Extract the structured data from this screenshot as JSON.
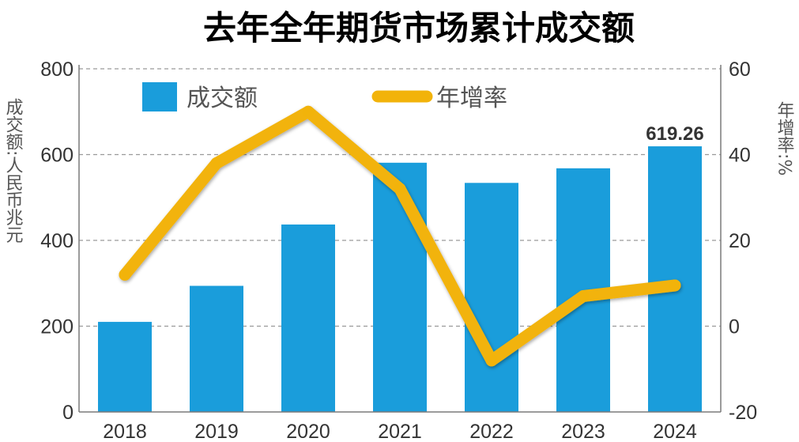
{
  "chart_data": {
    "type": "bar",
    "title": "去年全年期货市场累计成交额",
    "categories": [
      "2018",
      "2019",
      "2020",
      "2021",
      "2022",
      "2023",
      "2024"
    ],
    "series": [
      {
        "name": "成交额",
        "type": "bar",
        "axis": "left",
        "values": [
          210,
          294,
          437,
          581,
          534,
          568,
          619.26
        ]
      },
      {
        "name": "年增率",
        "type": "line",
        "axis": "right",
        "values": [
          12.0,
          38.0,
          50.0,
          32.0,
          -8.0,
          7.0,
          9.5
        ]
      }
    ],
    "ylabel": "成交额:人民币兆元",
    "y2label": "年增率:%",
    "ylim": [
      0,
      800
    ],
    "y2lim": [
      -20,
      60
    ],
    "yticks": [
      "0",
      "200",
      "400",
      "600",
      "800"
    ],
    "y2ticks": [
      "-20",
      "0",
      "20",
      "40",
      "60"
    ],
    "annotations": [
      {
        "category": "2024",
        "text": "619.26"
      }
    ],
    "grid": true,
    "legend": "top",
    "colors": {
      "bar": "#1a9ddb",
      "line": "#f2b30a",
      "title": "#2357a5",
      "annotation": "#1a9ddb"
    }
  }
}
